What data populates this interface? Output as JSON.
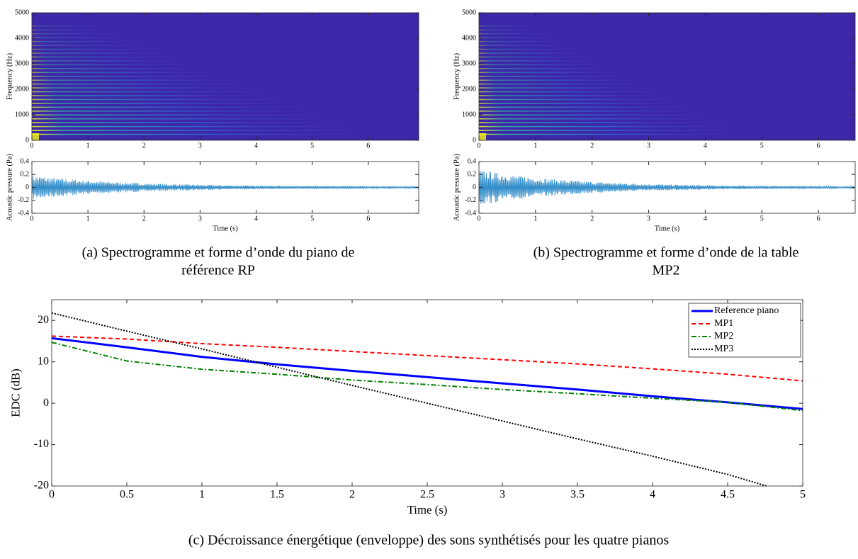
{
  "chart_data": [
    {
      "type": "heatmap",
      "ylabel": "Frequency (Hz)",
      "xlim": [
        0,
        6.9
      ],
      "xticks": [
        0,
        1,
        2,
        3,
        4,
        5,
        6
      ],
      "ylim": [
        0,
        5000
      ],
      "yticks": [
        0,
        1000,
        2000,
        3000,
        4000,
        5000
      ]
    },
    {
      "type": "waveform",
      "xlabel": "Time (s)",
      "ylabel": "Acoustic pressure (Pa)",
      "xlim": [
        0,
        6.9
      ],
      "xticks": [
        0,
        1,
        2,
        3,
        4,
        5,
        6
      ],
      "ylim": [
        -0.4,
        0.4
      ],
      "yticks": [
        -0.4,
        -0.2,
        0,
        0.2,
        0.4
      ]
    },
    {
      "type": "heatmap",
      "ylabel": "Frequency (Hz)",
      "xlim": [
        0,
        6.65
      ],
      "xticks": [
        0,
        1,
        2,
        3,
        4,
        5,
        6
      ],
      "ylim": [
        0,
        5000
      ],
      "yticks": [
        0,
        1000,
        2000,
        3000,
        4000,
        5000
      ]
    },
    {
      "type": "waveform",
      "xlabel": "Time (s)",
      "ylabel": "Acoustic pressure (Pa)",
      "xlim": [
        0,
        6.65
      ],
      "xticks": [
        0,
        1,
        2,
        3,
        4,
        5,
        6
      ],
      "ylim": [
        -0.4,
        0.4
      ],
      "yticks": [
        -0.4,
        -0.2,
        0,
        0.2,
        0.4
      ]
    },
    {
      "type": "line",
      "xlabel": "Time (s)",
      "ylabel": "EDC (dB)",
      "legend": "top-right",
      "x": [
        0,
        0.5,
        1,
        1.5,
        2,
        2.5,
        3,
        3.5,
        4,
        4.5,
        5
      ],
      "xlim": [
        0,
        5
      ],
      "xticks": [
        0,
        0.5,
        1,
        1.5,
        2,
        2.5,
        3,
        3.5,
        4,
        4.5,
        5
      ],
      "ylim": [
        -20,
        25
      ],
      "yticks": [
        -20,
        -10,
        0,
        10,
        20
      ],
      "series": [
        {
          "name": "Reference piano",
          "color": "#0000ff",
          "dash": "solid",
          "values": [
            15.7,
            13.5,
            11.2,
            9.4,
            7.8,
            6.3,
            4.8,
            3.3,
            1.7,
            0.2,
            -1.4
          ]
        },
        {
          "name": "MP1",
          "color": "#ff0000",
          "dash": "dashed",
          "values": [
            16.2,
            15.5,
            14.4,
            13.5,
            12.5,
            11.5,
            10.5,
            9.5,
            8.3,
            7.0,
            5.4
          ]
        },
        {
          "name": "MP2",
          "color": "#008000",
          "dash": "dashdot",
          "values": [
            14.7,
            10.2,
            8.2,
            7.0,
            5.6,
            4.5,
            3.3,
            2.3,
            1.2,
            0.2,
            -1.8
          ]
        },
        {
          "name": "MP3",
          "color": "#000000",
          "dash": "dotted",
          "values": [
            21.8,
            17.4,
            13.1,
            8.7,
            4.3,
            0.0,
            -4.3,
            -8.6,
            -12.8,
            -17.2,
            -22.6
          ]
        }
      ]
    }
  ],
  "captions": [
    "(a) Spectrogramme et forme d’onde du piano de",
    "référence RP",
    "(b) Spectrogramme et forme d’onde de la table",
    "MP2",
    "(c) Décroissance énergétique (enveloppe) des sons synthétisés pour les quatre pianos"
  ]
}
